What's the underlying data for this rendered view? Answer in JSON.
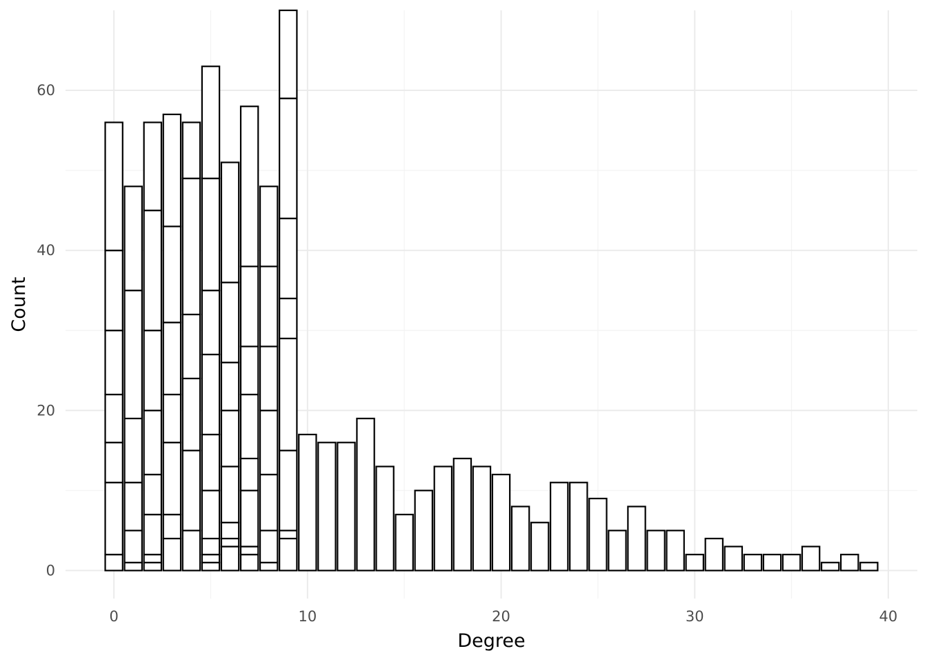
{
  "chart_data": {
    "type": "bar",
    "stacked": true,
    "xlabel": "Degree",
    "ylabel": "Count",
    "xlim": [
      -2.5,
      41.5
    ],
    "ylim": [
      -3.5,
      70
    ],
    "x_ticks": [
      "0",
      "10",
      "20",
      "30",
      "40"
    ],
    "y_ticks": [
      "0",
      "20",
      "40",
      "60"
    ],
    "grid": true,
    "legend": "none",
    "bar_fill": "#ffffff",
    "bar_outline": "#000000",
    "bars": [
      {
        "x": 0,
        "segments": [
          2,
          9,
          5,
          6,
          8,
          10,
          16
        ]
      },
      {
        "x": 1,
        "segments": [
          1,
          4,
          6,
          8,
          16,
          13
        ]
      },
      {
        "x": 2,
        "segments": [
          1,
          1,
          5,
          5,
          8,
          10,
          15,
          11
        ]
      },
      {
        "x": 3,
        "segments": [
          4,
          3,
          9,
          6,
          9,
          12,
          14
        ]
      },
      {
        "x": 4,
        "segments": [
          5,
          10,
          9,
          8,
          17,
          7
        ]
      },
      {
        "x": 5,
        "segments": [
          1,
          1,
          2,
          6,
          7,
          10,
          8,
          14,
          14
        ]
      },
      {
        "x": 6,
        "segments": [
          3,
          1,
          2,
          7,
          7,
          6,
          10,
          15
        ]
      },
      {
        "x": 7,
        "segments": [
          2,
          1,
          7,
          4,
          8,
          6,
          10,
          20
        ]
      },
      {
        "x": 8,
        "segments": [
          1,
          4,
          7,
          8,
          8,
          10,
          10
        ]
      },
      {
        "x": 9,
        "segments": [
          4,
          1,
          10,
          14,
          5,
          10,
          15,
          11
        ]
      },
      {
        "x": 10,
        "segments": [
          17
        ]
      },
      {
        "x": 11,
        "segments": [
          16
        ]
      },
      {
        "x": 12,
        "segments": [
          16
        ]
      },
      {
        "x": 13,
        "segments": [
          19
        ]
      },
      {
        "x": 14,
        "segments": [
          13
        ]
      },
      {
        "x": 15,
        "segments": [
          7
        ]
      },
      {
        "x": 16,
        "segments": [
          10
        ]
      },
      {
        "x": 17,
        "segments": [
          13
        ]
      },
      {
        "x": 18,
        "segments": [
          14
        ]
      },
      {
        "x": 19,
        "segments": [
          13
        ]
      },
      {
        "x": 20,
        "segments": [
          12
        ]
      },
      {
        "x": 21,
        "segments": [
          8
        ]
      },
      {
        "x": 22,
        "segments": [
          6
        ]
      },
      {
        "x": 23,
        "segments": [
          11
        ]
      },
      {
        "x": 24,
        "segments": [
          11
        ]
      },
      {
        "x": 25,
        "segments": [
          9
        ]
      },
      {
        "x": 26,
        "segments": [
          5
        ]
      },
      {
        "x": 27,
        "segments": [
          8
        ]
      },
      {
        "x": 28,
        "segments": [
          5
        ]
      },
      {
        "x": 29,
        "segments": [
          5
        ]
      },
      {
        "x": 30,
        "segments": [
          2
        ]
      },
      {
        "x": 31,
        "segments": [
          4
        ]
      },
      {
        "x": 32,
        "segments": [
          3
        ]
      },
      {
        "x": 33,
        "segments": [
          2
        ]
      },
      {
        "x": 34,
        "segments": [
          2
        ]
      },
      {
        "x": 35,
        "segments": [
          2
        ]
      },
      {
        "x": 36,
        "segments": [
          3
        ]
      },
      {
        "x": 37,
        "segments": [
          1
        ]
      },
      {
        "x": 38,
        "segments": [
          2
        ]
      },
      {
        "x": 39,
        "segments": [
          1
        ]
      }
    ]
  }
}
